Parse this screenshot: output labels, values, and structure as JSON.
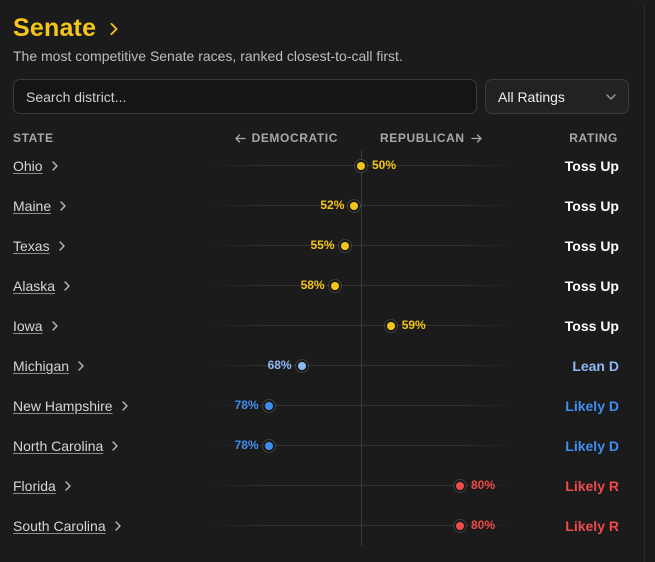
{
  "header": {
    "title": "Senate",
    "subtitle": "The most competitive Senate races, ranked closest-to-call first."
  },
  "search": {
    "placeholder": "Search district...",
    "value": ""
  },
  "filter": {
    "selected": "All Ratings"
  },
  "columns": {
    "state": "STATE",
    "democratic": "DEMOCRATIC",
    "republican": "REPUBLICAN",
    "rating": "RATING"
  },
  "colors": {
    "toss_up": "#f5c518",
    "lean_d": "#8fb8f2",
    "likely_d": "#3f8ef0",
    "likely_r": "#ef4b4b",
    "toss_up_label": "#ffffff"
  },
  "races": [
    {
      "state": "Ohio",
      "pct": "50%",
      "lean": "R",
      "margin": 0,
      "rating": "Toss Up",
      "tone": "toss_up"
    },
    {
      "state": "Maine",
      "pct": "52%",
      "lean": "D",
      "margin": 2,
      "rating": "Toss Up",
      "tone": "toss_up"
    },
    {
      "state": "Texas",
      "pct": "55%",
      "lean": "D",
      "margin": 5,
      "rating": "Toss Up",
      "tone": "toss_up"
    },
    {
      "state": "Alaska",
      "pct": "58%",
      "lean": "D",
      "margin": 8,
      "rating": "Toss Up",
      "tone": "toss_up"
    },
    {
      "state": "Iowa",
      "pct": "59%",
      "lean": "R",
      "margin": 9,
      "rating": "Toss Up",
      "tone": "toss_up"
    },
    {
      "state": "Michigan",
      "pct": "68%",
      "lean": "D",
      "margin": 18,
      "rating": "Lean D",
      "tone": "lean_d"
    },
    {
      "state": "New Hampshire",
      "pct": "78%",
      "lean": "D",
      "margin": 28,
      "rating": "Likely D",
      "tone": "likely_d"
    },
    {
      "state": "North Carolina",
      "pct": "78%",
      "lean": "D",
      "margin": 28,
      "rating": "Likely D",
      "tone": "likely_d"
    },
    {
      "state": "Florida",
      "pct": "80%",
      "lean": "R",
      "margin": 30,
      "rating": "Likely R",
      "tone": "likely_r"
    },
    {
      "state": "South Carolina",
      "pct": "80%",
      "lean": "R",
      "margin": 30,
      "rating": "Likely R",
      "tone": "likely_r"
    }
  ]
}
